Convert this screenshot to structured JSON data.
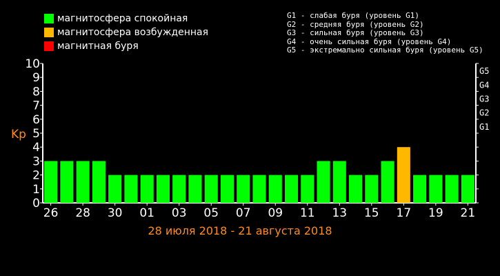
{
  "legend": [
    {
      "label": "магнитосфера спокойная",
      "color": "#00ff00"
    },
    {
      "label": "магнитосфера возбужденная",
      "color": "#ffb800"
    },
    {
      "label": "магнитная буря",
      "color": "#ff0000"
    }
  ],
  "g_legend": [
    "G1 - слабая буря (уровень G1)",
    "G2 - средняя буря (уровень G2)",
    "G3 - сильная буря (уровень G3)",
    "G4 - очень сильная буря (уровень G4)",
    "G5 - экстремально сильная буря (уровень G5)"
  ],
  "chart_data": {
    "type": "bar",
    "ylabel": "Kp",
    "xlabel": "28 июля 2018 - 21 августа 2018",
    "ylim": [
      0,
      10
    ],
    "y_ticks": [
      "0",
      "1",
      "2",
      "3",
      "4",
      "5",
      "6",
      "7",
      "8",
      "9",
      "10"
    ],
    "g_ticks": [
      {
        "label": "G1",
        "value": 5
      },
      {
        "label": "G2",
        "value": 6
      },
      {
        "label": "G3",
        "value": 7
      },
      {
        "label": "G4",
        "value": 8
      },
      {
        "label": "G5",
        "value": 9
      }
    ],
    "x_tick_labels": [
      "26",
      "28",
      "30",
      "01",
      "03",
      "05",
      "07",
      "09",
      "11",
      "13",
      "15",
      "17",
      "19",
      "21"
    ],
    "values": [
      3,
      3,
      3,
      3,
      2,
      2,
      2,
      2,
      2,
      2,
      2,
      2,
      2,
      2,
      2,
      2,
      2,
      3,
      3,
      2,
      2,
      3,
      4,
      2,
      2,
      2,
      2
    ],
    "bar_colors": [
      "#00ff00",
      "#00ff00",
      "#00ff00",
      "#00ff00",
      "#00ff00",
      "#00ff00",
      "#00ff00",
      "#00ff00",
      "#00ff00",
      "#00ff00",
      "#00ff00",
      "#00ff00",
      "#00ff00",
      "#00ff00",
      "#00ff00",
      "#00ff00",
      "#00ff00",
      "#00ff00",
      "#00ff00",
      "#00ff00",
      "#00ff00",
      "#00ff00",
      "#ffb800",
      "#00ff00",
      "#00ff00",
      "#00ff00",
      "#00ff00"
    ],
    "grid": false
  }
}
